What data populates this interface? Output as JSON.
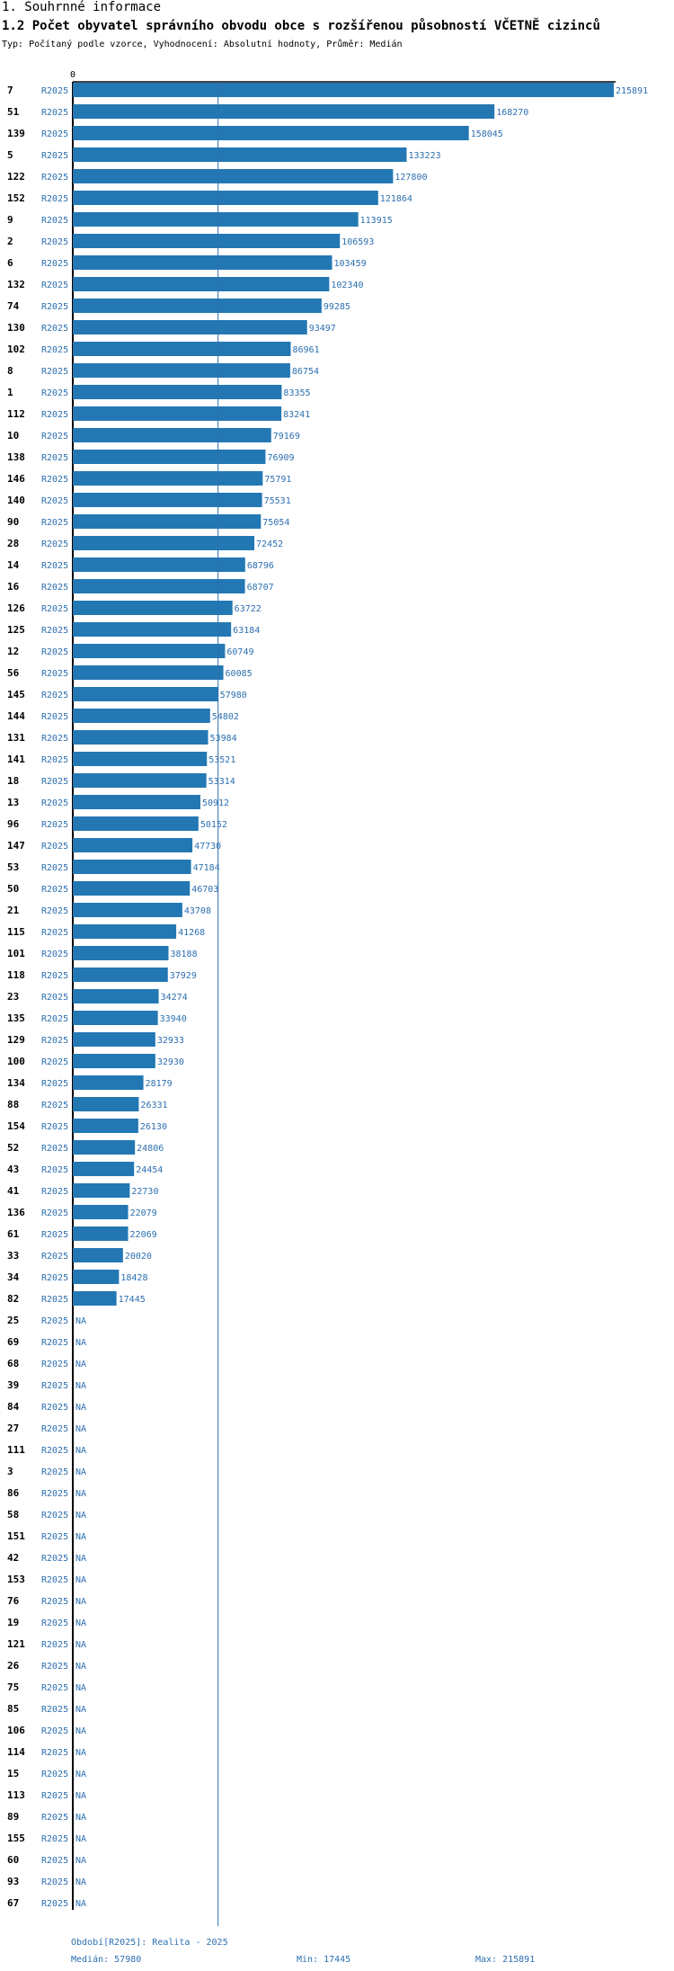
{
  "header": {
    "section": "1. Souhrnné informace",
    "title": "1.2 Počet obyvatel správního obvodu obce s rozšířenou působností VČETNĚ cizinců",
    "meta": "Typ: Počítaný podle vzorce, Vyhodnocení: Absolutní hodnoty, Průměr: Medián"
  },
  "chart_data": {
    "type": "bar",
    "orientation": "horizontal",
    "axis_zero_label": "0",
    "period_label": "R2025",
    "na_label": "NA",
    "bar_color": "#2378b4",
    "median_line_color": "#2c6fb0",
    "xlim": [
      0,
      215891
    ],
    "median": 57980,
    "categories": [
      "7",
      "51",
      "139",
      "5",
      "122",
      "152",
      "9",
      "2",
      "6",
      "132",
      "74",
      "130",
      "102",
      "8",
      "1",
      "112",
      "10",
      "138",
      "146",
      "140",
      "90",
      "28",
      "14",
      "16",
      "126",
      "125",
      "12",
      "56",
      "145",
      "144",
      "131",
      "141",
      "18",
      "13",
      "96",
      "147",
      "53",
      "50",
      "21",
      "115",
      "101",
      "118",
      "23",
      "135",
      "129",
      "100",
      "134",
      "88",
      "154",
      "52",
      "43",
      "41",
      "136",
      "61",
      "33",
      "34",
      "82",
      "25",
      "69",
      "68",
      "39",
      "84",
      "27",
      "111",
      "3",
      "86",
      "58",
      "151",
      "42",
      "153",
      "76",
      "19",
      "121",
      "26",
      "75",
      "85",
      "106",
      "114",
      "15",
      "113",
      "89",
      "155",
      "60",
      "93",
      "67"
    ],
    "values": [
      215891,
      168270,
      158045,
      133223,
      127800,
      121864,
      113915,
      106593,
      103459,
      102340,
      99285,
      93497,
      86961,
      86754,
      83355,
      83241,
      79169,
      76909,
      75791,
      75531,
      75054,
      72452,
      68796,
      68707,
      63722,
      63184,
      60749,
      60085,
      57980,
      54802,
      53984,
      53521,
      53314,
      50912,
      50152,
      47730,
      47184,
      46703,
      43708,
      41268,
      38188,
      37929,
      34274,
      33940,
      32933,
      32930,
      28179,
      26331,
      26130,
      24806,
      24454,
      22730,
      22079,
      22069,
      20020,
      18428,
      17445,
      null,
      null,
      null,
      null,
      null,
      null,
      null,
      null,
      null,
      null,
      null,
      null,
      null,
      null,
      null,
      null,
      null,
      null,
      null,
      null,
      null,
      null,
      null,
      null,
      null,
      null,
      null,
      null
    ]
  },
  "footer": {
    "period": "Období[R2025]: Realita - 2025",
    "median": "Medián: 57980",
    "min": "Min: 17445",
    "max": "Max: 215891"
  }
}
